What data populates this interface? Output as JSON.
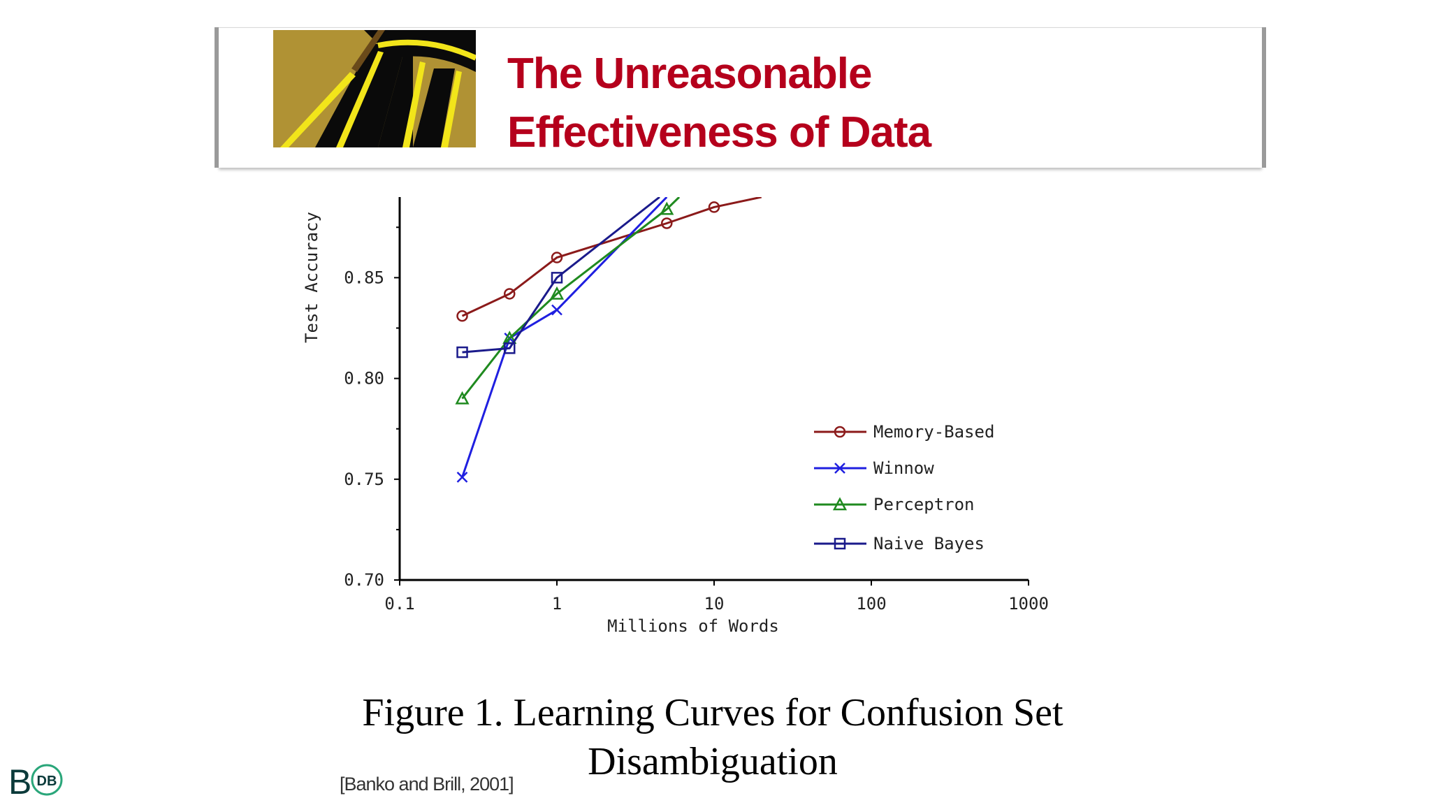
{
  "banner": {
    "title_line1": "The Unreasonable",
    "title_line2": "Effectiveness of Data"
  },
  "chart_data": {
    "type": "line",
    "xscale": "log",
    "xlabel": "Millions of Words",
    "ylabel": "Test Accuracy",
    "xlim": [
      0.1,
      1000
    ],
    "ylim": [
      0.7,
      0.89
    ],
    "xticks": [
      "0.1",
      "1",
      "10",
      "100",
      "1000"
    ],
    "yticks": [
      "0.70",
      "0.75",
      "0.80",
      "0.85"
    ],
    "legend_position": "right",
    "series": [
      {
        "name": "Memory-Based",
        "color": "#8b1a1a",
        "marker": "circle",
        "x": [
          0.25,
          0.5,
          1,
          5,
          10,
          20
        ],
        "y": [
          0.831,
          0.842,
          0.86,
          0.877,
          0.885,
          0.89
        ]
      },
      {
        "name": "Winnow",
        "color": "#1f1fe0",
        "marker": "x",
        "x": [
          0.25,
          0.5,
          1,
          5
        ],
        "y": [
          0.751,
          0.82,
          0.834,
          0.89
        ]
      },
      {
        "name": "Perceptron",
        "color": "#1f8a1f",
        "marker": "triangle",
        "x": [
          0.25,
          0.5,
          1,
          5,
          6
        ],
        "y": [
          0.79,
          0.82,
          0.842,
          0.884,
          0.89
        ]
      },
      {
        "name": "Naive Bayes",
        "color": "#1a1a8b",
        "marker": "square",
        "x": [
          0.25,
          0.5,
          1,
          4.5
        ],
        "y": [
          0.813,
          0.815,
          0.85,
          0.89
        ]
      }
    ]
  },
  "legend_labels": [
    "Memory-Based",
    "Winnow",
    "Perceptron",
    "Naive Bayes"
  ],
  "caption": {
    "line1": "Figure 1. Learning Curves for Confusion Set",
    "line2": "Disambiguation"
  },
  "citation": "[Banko and Brill, 2001]",
  "logo": {
    "letter": "B",
    "badge": "DB"
  }
}
